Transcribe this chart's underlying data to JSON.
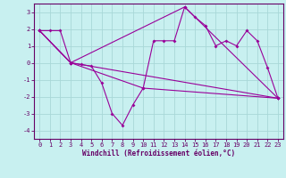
{
  "xlabel": "Windchill (Refroidissement éolien,°C)",
  "background_color": "#c8f0f0",
  "grid_color": "#a8d8d8",
  "line_color": "#990099",
  "xlim": [
    -0.5,
    23.5
  ],
  "ylim": [
    -4.5,
    3.5
  ],
  "yticks": [
    -4,
    -3,
    -2,
    -1,
    0,
    1,
    2,
    3
  ],
  "xticks": [
    0,
    1,
    2,
    3,
    4,
    5,
    6,
    7,
    8,
    9,
    10,
    11,
    12,
    13,
    14,
    15,
    16,
    17,
    18,
    19,
    20,
    21,
    22,
    23
  ],
  "line1_x": [
    0,
    1,
    2,
    3,
    4,
    5,
    6,
    7,
    8,
    9,
    10,
    11,
    12,
    13,
    14,
    15,
    16,
    17,
    18,
    19,
    20,
    21,
    22,
    23
  ],
  "line1_y": [
    1.9,
    1.9,
    1.9,
    0.0,
    -0.1,
    -0.2,
    -1.2,
    -3.0,
    -3.7,
    -2.5,
    -1.5,
    1.3,
    1.3,
    1.3,
    3.3,
    2.7,
    2.2,
    1.0,
    1.3,
    1.0,
    1.9,
    1.3,
    -0.3,
    -2.1
  ],
  "line3_x": [
    0,
    3,
    23
  ],
  "line3_y": [
    1.9,
    0.0,
    -2.1
  ],
  "line4_x": [
    0,
    3,
    14,
    23
  ],
  "line4_y": [
    1.9,
    0.0,
    3.3,
    -2.1
  ],
  "line5_x": [
    0,
    3,
    10,
    23
  ],
  "line5_y": [
    1.9,
    0.0,
    -1.5,
    -2.1
  ]
}
